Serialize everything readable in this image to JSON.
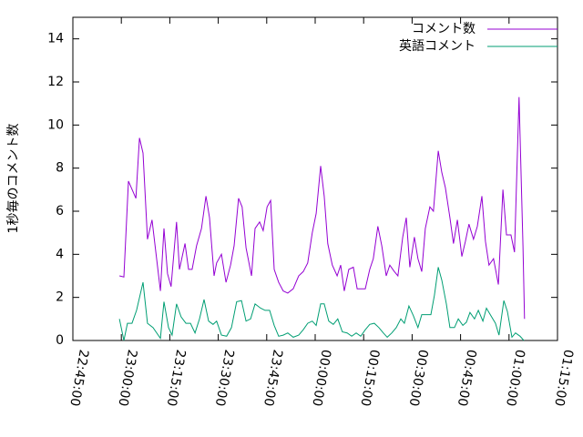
{
  "chart_data": {
    "type": "line",
    "ylabel": "1秒毎のコメント数",
    "xlim": [
      0,
      150
    ],
    "xticks": [
      {
        "value": 0,
        "label": "22:45:00"
      },
      {
        "value": 15,
        "label": "23:00:00"
      },
      {
        "value": 30,
        "label": "23:15:00"
      },
      {
        "value": 45,
        "label": "23:30:00"
      },
      {
        "value": 60,
        "label": "23:45:00"
      },
      {
        "value": 75,
        "label": "00:00:00"
      },
      {
        "value": 90,
        "label": "00:15:00"
      },
      {
        "value": 105,
        "label": "00:30:00"
      },
      {
        "value": 120,
        "label": "00:45:00"
      },
      {
        "value": 135,
        "label": "01:00:00"
      },
      {
        "value": 150,
        "label": "01:15:00"
      }
    ],
    "ylim": [
      0,
      15
    ],
    "yticks": [
      0,
      2,
      4,
      6,
      8,
      10,
      12,
      14
    ],
    "grid": false,
    "legend": "top-right",
    "series": [
      {
        "name": "コメント数",
        "color": "#9400d3",
        "x": [
          14.4,
          15.8,
          17.2,
          19.5,
          20.6,
          21.7,
          23.1,
          24.5,
          27.1,
          28.2,
          29.3,
          30.4,
          32.1,
          33.0,
          34.7,
          35.8,
          36.9,
          38.3,
          39.8,
          41.2,
          42.3,
          43.7,
          44.5,
          46.0,
          47.4,
          48.8,
          49.9,
          51.3,
          52.4,
          53.6,
          55.3,
          56.4,
          57.8,
          58.9,
          60.1,
          61.2,
          62.3,
          63.7,
          65.1,
          66.5,
          68.2,
          69.9,
          71.3,
          72.7,
          74.1,
          75.3,
          76.7,
          77.8,
          78.9,
          80.3,
          81.8,
          82.9,
          84.0,
          85.4,
          86.8,
          88.0,
          89.4,
          90.5,
          91.9,
          93.0,
          94.4,
          95.6,
          97.0,
          98.1,
          99.5,
          100.6,
          102.1,
          103.2,
          104.3,
          105.7,
          106.8,
          108.0,
          109.1,
          110.5,
          111.6,
          113.1,
          114.2,
          115.3,
          116.7,
          117.8,
          119.0,
          120.4,
          121.5,
          122.6,
          124.0,
          125.2,
          126.6,
          127.7,
          128.8,
          130.2,
          131.7,
          133.1,
          134.2,
          135.6,
          136.7,
          138.1,
          139.3,
          139.8
        ],
        "values": [
          3.0,
          2.95,
          7.4,
          6.6,
          9.4,
          8.7,
          4.7,
          5.6,
          2.3,
          5.2,
          3.1,
          2.5,
          5.5,
          3.3,
          4.5,
          3.3,
          3.3,
          4.4,
          5.2,
          6.7,
          5.7,
          3.0,
          3.6,
          4.0,
          2.7,
          3.5,
          4.4,
          6.6,
          6.2,
          4.3,
          3.0,
          5.2,
          5.5,
          5.1,
          6.2,
          6.5,
          3.3,
          2.7,
          2.3,
          2.2,
          2.4,
          3.0,
          3.2,
          3.6,
          5.0,
          5.9,
          8.1,
          6.7,
          4.5,
          3.5,
          3.0,
          3.5,
          2.3,
          3.3,
          3.4,
          2.4,
          2.4,
          2.4,
          3.3,
          3.8,
          5.3,
          4.4,
          3.0,
          3.5,
          3.2,
          3.0,
          4.8,
          5.7,
          3.4,
          4.8,
          3.8,
          3.2,
          5.2,
          6.2,
          6.0,
          8.8,
          7.8,
          7.1,
          5.7,
          4.5,
          5.6,
          3.9,
          4.6,
          5.4,
          4.7,
          5.3,
          6.7,
          4.6,
          3.5,
          3.8,
          2.6,
          7.0,
          4.9,
          4.9,
          4.1,
          11.3,
          4.4,
          1.0
        ]
      },
      {
        "name": "英語コメント",
        "color": "#009e73",
        "x": [
          14.4,
          15.8,
          16.9,
          18.3,
          19.7,
          21.7,
          23.1,
          24.8,
          27.1,
          28.2,
          29.6,
          30.7,
          32.1,
          33.5,
          35.0,
          36.4,
          37.8,
          39.2,
          40.6,
          42.0,
          43.4,
          44.5,
          46.0,
          47.6,
          49.1,
          50.7,
          52.2,
          53.6,
          55.0,
          56.4,
          58.1,
          59.5,
          60.9,
          62.3,
          63.7,
          65.1,
          66.5,
          68.2,
          69.9,
          71.3,
          72.7,
          74.1,
          75.3,
          76.7,
          77.8,
          79.2,
          80.6,
          82.0,
          83.4,
          84.9,
          86.3,
          87.7,
          89.1,
          90.5,
          91.9,
          93.3,
          94.7,
          96.1,
          97.3,
          98.7,
          100.1,
          101.5,
          102.6,
          104.0,
          105.4,
          106.8,
          108.0,
          109.4,
          110.8,
          111.9,
          113.1,
          114.2,
          115.6,
          116.7,
          118.1,
          119.3,
          120.7,
          121.8,
          122.9,
          124.3,
          125.5,
          126.9,
          128.0,
          129.4,
          130.8,
          131.9,
          133.4,
          134.5,
          135.9,
          137.0,
          138.4,
          139.6
        ],
        "values": [
          1.0,
          0.0,
          0.8,
          0.8,
          1.4,
          2.7,
          0.8,
          0.6,
          0.1,
          1.8,
          0.6,
          0.25,
          1.7,
          1.1,
          0.8,
          0.8,
          0.35,
          1.0,
          1.9,
          0.9,
          0.75,
          0.9,
          0.25,
          0.2,
          0.6,
          1.8,
          1.85,
          0.9,
          1.0,
          1.7,
          1.5,
          1.4,
          1.4,
          0.7,
          0.2,
          0.25,
          0.35,
          0.15,
          0.25,
          0.5,
          0.8,
          0.9,
          0.7,
          1.7,
          1.7,
          0.9,
          0.75,
          1.0,
          0.4,
          0.35,
          0.2,
          0.35,
          0.2,
          0.5,
          0.75,
          0.8,
          0.6,
          0.35,
          0.15,
          0.35,
          0.6,
          1.0,
          0.8,
          1.6,
          1.15,
          0.6,
          1.2,
          1.2,
          1.2,
          2.1,
          3.4,
          2.8,
          1.7,
          0.6,
          0.6,
          1.0,
          0.7,
          0.85,
          1.3,
          1.0,
          1.4,
          0.9,
          1.5,
          1.15,
          0.8,
          0.25,
          1.85,
          1.35,
          0.15,
          0.35,
          0.2,
          0.0
        ]
      }
    ]
  }
}
